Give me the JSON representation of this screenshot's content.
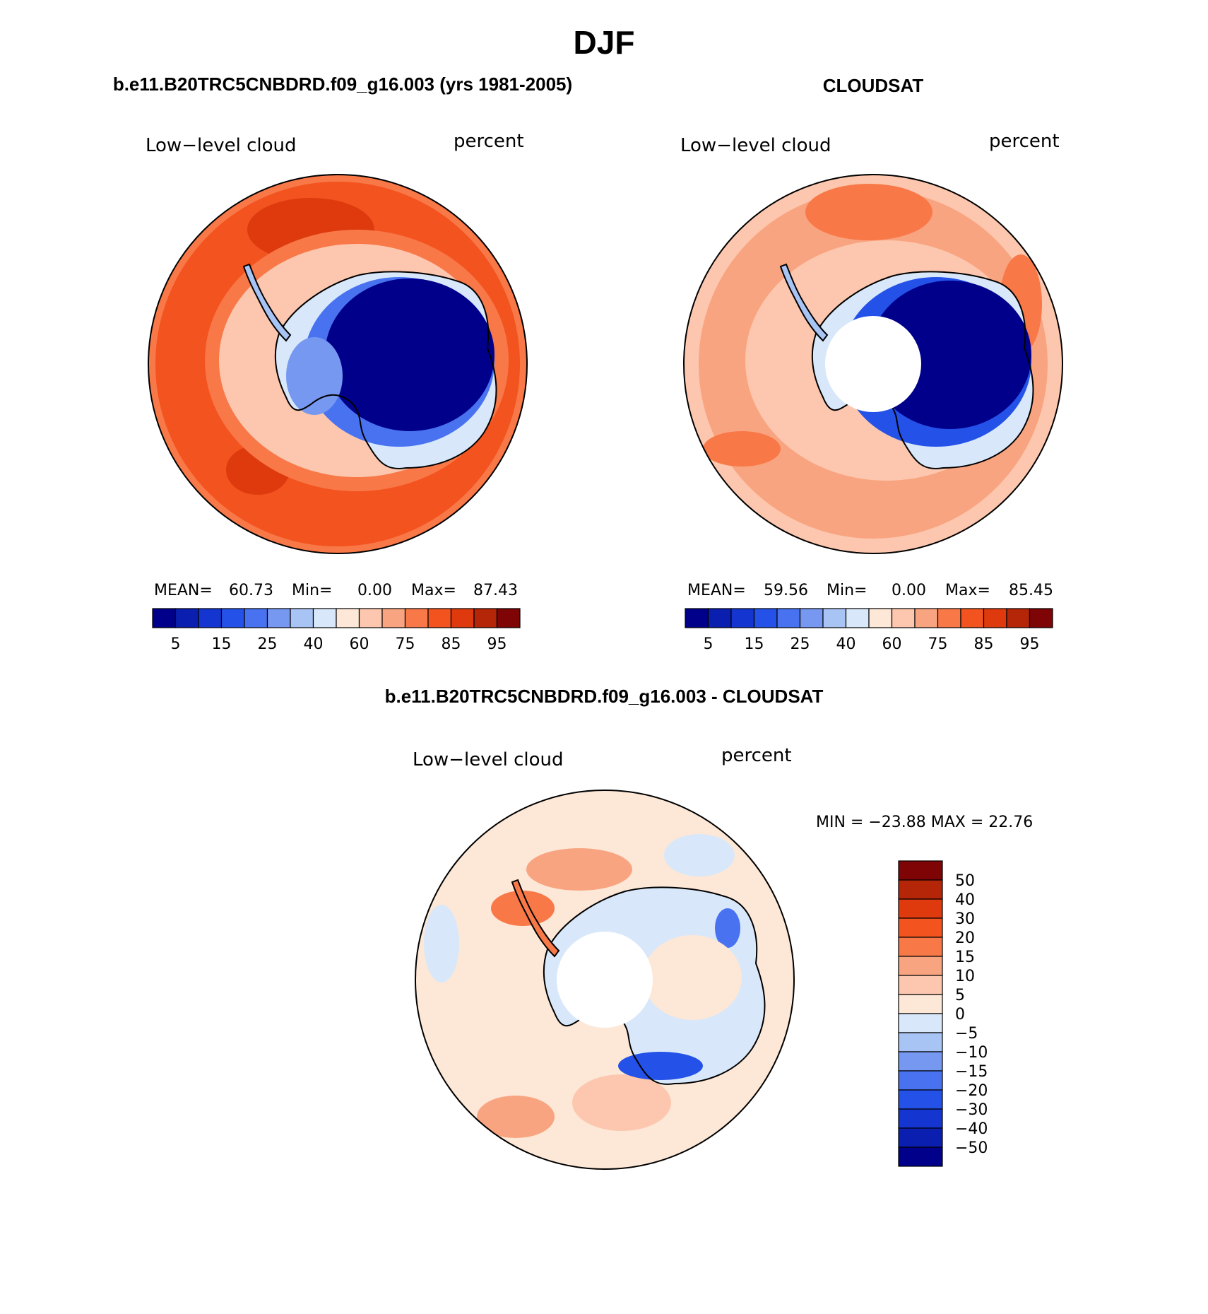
{
  "page": {
    "season": "DJF"
  },
  "panels": [
    {
      "id": "model",
      "header": "b.e11.B20TRC5CNBDRD.f09_g16.003 (yrs 1981-2005)",
      "left_label": "Low−level cloud",
      "right_label": "percent",
      "stats": {
        "mean_label": "MEAN=",
        "mean": "60.73",
        "min_label": "Min=",
        "min": "0.00",
        "max_label": "Max=",
        "max": "87.43"
      },
      "ocean_level": 11,
      "ice_edge_level": 7,
      "interior_level": 0,
      "has_pole_hole": false
    },
    {
      "id": "obs",
      "header": "CLOUDSAT",
      "left_label": "Low−level cloud",
      "right_label": "percent",
      "stats": {
        "mean_label": "MEAN=",
        "mean": "59.56",
        "min_label": "Min=",
        "min": "0.00",
        "max_label": "Max=",
        "max": "85.45"
      },
      "ocean_level": 9,
      "ice_edge_level": 6,
      "interior_level": 0,
      "has_pole_hole": true
    },
    {
      "id": "diff",
      "header": "b.e11.B20TRC5CNBDRD.f09_g16.003 - CLOUDSAT",
      "left_label": "Low−level cloud",
      "right_label": "percent",
      "stats_text": "MIN = −23.88 MAX =  22.76",
      "has_pole_hole": true
    }
  ],
  "colorbar_abs": {
    "colors": [
      "#00008b",
      "#0a1fb0",
      "#1535d0",
      "#2452e8",
      "#4872f0",
      "#7698f0",
      "#a8c4f5",
      "#d8e8fa",
      "#fde7d6",
      "#fcc7ae",
      "#f9a480",
      "#f87848",
      "#f3531f",
      "#de3a0e",
      "#b52508",
      "#7e0406"
    ],
    "tick_labels": [
      "5",
      "15",
      "25",
      "40",
      "60",
      "75",
      "85",
      "95"
    ]
  },
  "colorbar_diff": {
    "colors_top_to_bottom": [
      "#7e0406",
      "#b52508",
      "#de3a0e",
      "#f3531f",
      "#f87848",
      "#f9a480",
      "#fcc7ae",
      "#fde7d6",
      "#d8e8fa",
      "#a8c4f5",
      "#7698f0",
      "#4872f0",
      "#2452e8",
      "#1535d0",
      "#0a1fb0",
      "#00008b"
    ],
    "tick_labels": [
      "50",
      "40",
      "30",
      "20",
      "15",
      "10",
      "5",
      "0",
      "−5",
      "−10",
      "−15",
      "−20",
      "−30",
      "−40",
      "−50"
    ]
  },
  "map_colors": {
    "diff_ocean": "#fde7d6",
    "diff_pos_patch": "#f9a480",
    "diff_neg_patch": "#d8e8fa",
    "diff_neg_strong": "#2452e8",
    "coastline": "#000000",
    "hole": "#ffffff"
  }
}
